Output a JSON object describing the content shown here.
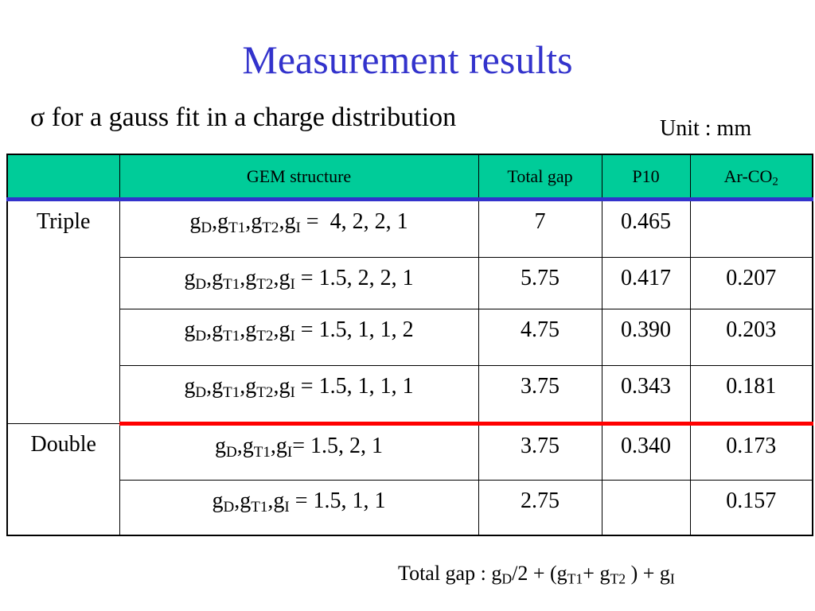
{
  "title": "Measurement results",
  "subtitle": "σ for a gauss fit in a charge distribution",
  "unit": "Unit : mm",
  "table": {
    "headers": {
      "group": "",
      "gem_structure": "GEM structure",
      "total_gap": "Total gap",
      "p10": "P10",
      "arco2_base": "Ar-CO",
      "arco2_sub": "2"
    },
    "groups": {
      "triple": "Triple",
      "double": "Double"
    },
    "rows": [
      {
        "values": "4, 2, 2, 1",
        "total_gap": "7",
        "p10": "0.465",
        "arco2": ""
      },
      {
        "values": "1.5, 2, 2, 1",
        "total_gap": "5.75",
        "p10": "0.417",
        "arco2": "0.207"
      },
      {
        "values": "1.5, 1, 1, 2",
        "total_gap": "4.75",
        "p10": "0.390",
        "arco2": "0.203"
      },
      {
        "values": "1.5, 1, 1, 1",
        "total_gap": "3.75",
        "p10": "0.343",
        "arco2": "0.181"
      },
      {
        "values": "1.5, 2, 1",
        "total_gap": "3.75",
        "p10": "0.340",
        "arco2": "0.173"
      },
      {
        "values": "1.5, 1, 1",
        "total_gap": "2.75",
        "p10": "",
        "arco2": "0.157"
      }
    ]
  },
  "colors": {
    "title": "#3333cc",
    "header_bg": "#00cc99",
    "header_rule": "#3333cc",
    "group_rule": "#ff0000"
  }
}
